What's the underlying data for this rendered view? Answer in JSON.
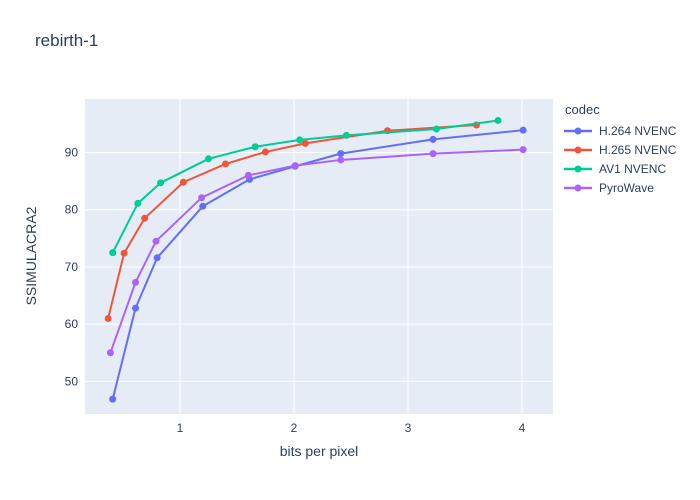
{
  "page": {
    "title": "rebirth-1"
  },
  "chart_data": {
    "type": "line",
    "title": "rebirth-1",
    "xlabel": "bits per pixel",
    "ylabel": "SSIMULACRA2",
    "legend_title": "codec",
    "legend_position": "right",
    "grid": true,
    "plot_bgcolor": "#e5ecf6",
    "grid_color": "#ffffff",
    "text_color": "#2a3f5f",
    "xlim": [
      0.167,
      4.272
    ],
    "ylim": [
      44.3,
      99.35
    ],
    "x_ticks": [
      1,
      2,
      3,
      4
    ],
    "y_ticks": [
      50,
      60,
      70,
      80,
      90
    ],
    "series": [
      {
        "name": "H.264 NVENC",
        "color": "#636efa",
        "x": [
          0.41,
          0.61,
          0.8,
          1.2,
          1.61,
          2.01,
          2.41,
          3.22,
          4.01
        ],
        "y": [
          46.9,
          62.8,
          71.6,
          80.6,
          85.3,
          87.6,
          89.8,
          92.3,
          93.9
        ]
      },
      {
        "name": "H.265 NVENC",
        "color": "#ef553b",
        "x": [
          0.37,
          0.51,
          0.69,
          1.03,
          1.4,
          1.75,
          2.1,
          2.82,
          3.6
        ],
        "y": [
          61.0,
          72.4,
          78.5,
          84.8,
          88.0,
          90.1,
          91.6,
          93.8,
          94.8
        ]
      },
      {
        "name": "AV1 NVENC",
        "color": "#00cc96",
        "x": [
          0.41,
          0.63,
          0.83,
          1.25,
          1.66,
          2.05,
          2.46,
          3.25,
          3.79
        ],
        "y": [
          72.5,
          81.1,
          84.7,
          88.9,
          91.0,
          92.2,
          93.0,
          94.1,
          95.6
        ]
      },
      {
        "name": "PyroWave",
        "color": "#ab63fa",
        "x": [
          0.39,
          0.61,
          0.79,
          1.19,
          1.6,
          2.01,
          2.41,
          3.22,
          4.01
        ],
        "y": [
          55.0,
          67.3,
          74.5,
          82.1,
          86.0,
          87.7,
          88.7,
          89.8,
          90.5
        ]
      }
    ]
  }
}
